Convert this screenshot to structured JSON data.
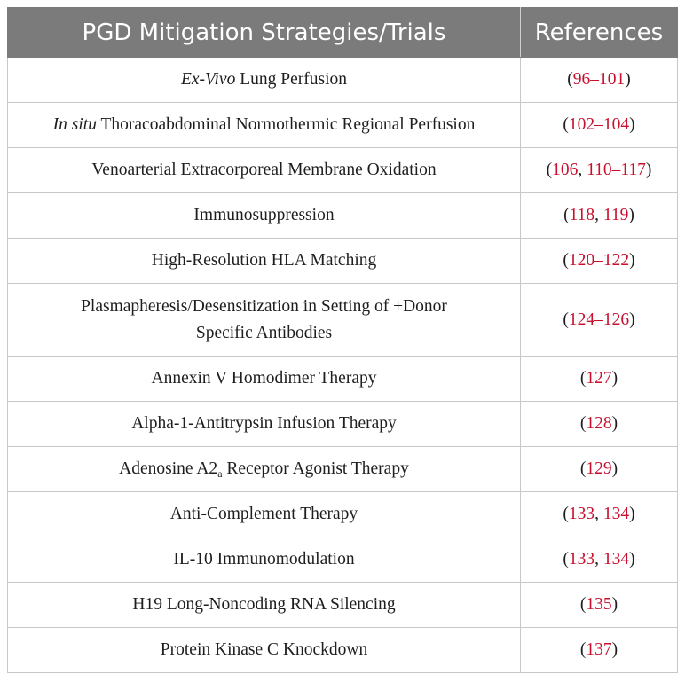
{
  "header": {
    "col1": "PGD Mitigation Strategies/Trials",
    "col2": "References"
  },
  "rows": [
    {
      "strategy_italic": "Ex-Vivo",
      "strategy": "Lung Perfusion",
      "refs": [
        "96–101"
      ]
    },
    {
      "strategy_italic": "In situ",
      "strategy": "Thoracoabdominal Normothermic Regional Perfusion",
      "refs": [
        "102–104"
      ]
    },
    {
      "strategy": "Venoarterial Extracorporeal Membrane Oxidation",
      "refs": [
        "106",
        "110–117"
      ]
    },
    {
      "strategy": "Immunosuppression",
      "refs": [
        "118",
        "119"
      ]
    },
    {
      "strategy": "High-Resolution HLA Matching",
      "refs": [
        "120–122"
      ]
    },
    {
      "strategy_line1": "Plasmapheresis/Desensitization in Setting of +Donor",
      "strategy_line2": "Specific Antibodies",
      "refs": [
        "124–126"
      ]
    },
    {
      "strategy": "Annexin V Homodimer Therapy",
      "refs": [
        "127"
      ]
    },
    {
      "strategy": "Alpha-1-Antitrypsin Infusion Therapy",
      "refs": [
        "128"
      ]
    },
    {
      "strategy_pre": "Adenosine A2",
      "strategy_sub": "a",
      "strategy_post": " Receptor Agonist Therapy",
      "refs": [
        "129"
      ]
    },
    {
      "strategy": "Anti-Complement Therapy",
      "refs": [
        "133",
        "134"
      ]
    },
    {
      "strategy": "IL-10 Immunomodulation",
      "refs": [
        "133",
        "134"
      ]
    },
    {
      "strategy": "H19 Long-Noncoding RNA Silencing",
      "refs": [
        "135"
      ]
    },
    {
      "strategy": "Protein Kinase C Knockdown",
      "refs": [
        "137"
      ]
    }
  ],
  "colors": {
    "header_bg": "#7b7b7b",
    "reference_link": "#c8102e"
  }
}
